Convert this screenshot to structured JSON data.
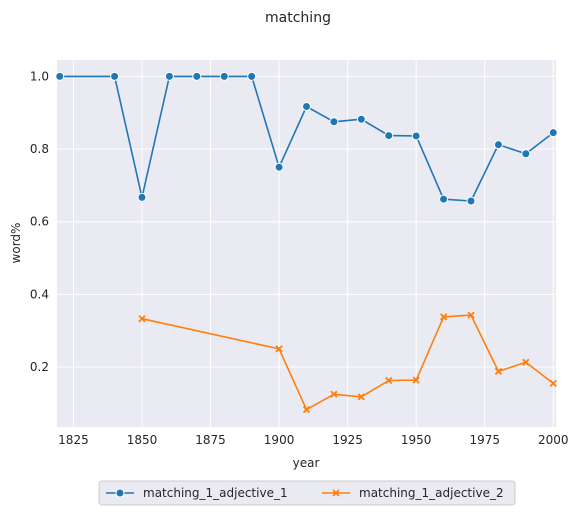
{
  "chart_data": {
    "type": "line",
    "title": "matching",
    "xlabel": "year",
    "ylabel": "word%",
    "xlim": [
      1819,
      2001
    ],
    "ylim": [
      0.035,
      1.045
    ],
    "x_ticks": [
      1825,
      1850,
      1875,
      1900,
      1925,
      1950,
      1975,
      2000
    ],
    "y_ticks": [
      0.2,
      0.4,
      0.6,
      0.8,
      1.0
    ],
    "x_tick_labels": [
      "1825",
      "1850",
      "1875",
      "1900",
      "1925",
      "1950",
      "1975",
      "2000"
    ],
    "y_tick_labels": [
      "0.2",
      "0.4",
      "0.6",
      "0.8",
      "1.0"
    ],
    "grid": true,
    "legend_position": "bottom-center",
    "series": [
      {
        "name": "matching_1_adjective_1",
        "color": "#1f77b4",
        "marker": "circle",
        "x": [
          1820,
          1840,
          1850,
          1860,
          1870,
          1880,
          1890,
          1900,
          1910,
          1920,
          1930,
          1940,
          1950,
          1960,
          1970,
          1980,
          1990,
          2000
        ],
        "y": [
          1.0,
          1.0,
          0.667,
          1.0,
          1.0,
          1.0,
          1.0,
          0.75,
          0.917,
          0.875,
          0.882,
          0.837,
          0.836,
          0.662,
          0.657,
          0.812,
          0.787,
          0.845
        ]
      },
      {
        "name": "matching_1_adjective_2",
        "color": "#ff7f0e",
        "marker": "x",
        "x": [
          1850,
          1900,
          1910,
          1920,
          1930,
          1940,
          1950,
          1960,
          1970,
          1980,
          1990,
          2000
        ],
        "y": [
          0.333,
          0.25,
          0.083,
          0.125,
          0.118,
          0.163,
          0.164,
          0.338,
          0.343,
          0.188,
          0.213,
          0.155
        ]
      }
    ]
  }
}
